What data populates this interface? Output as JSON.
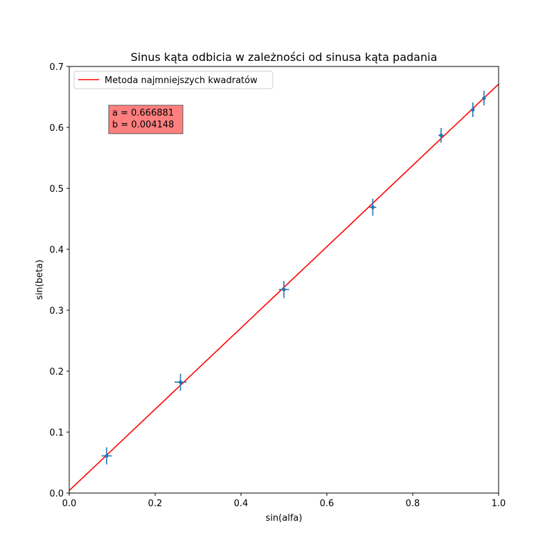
{
  "chart_data": {
    "type": "scatter",
    "title": "Sinus kąta odbicia w zależności od sinusa kąta padania",
    "xlabel": "sin(alfa)",
    "ylabel": "sin(beta)",
    "xlim": [
      0.0,
      1.0
    ],
    "ylim": [
      0.0,
      0.7
    ],
    "xticks": [
      "0.0",
      "0.2",
      "0.4",
      "0.6",
      "0.8",
      "1.0"
    ],
    "yticks": [
      "0.0",
      "0.1",
      "0.2",
      "0.3",
      "0.4",
      "0.5",
      "0.6",
      "0.7"
    ],
    "grid": false,
    "legend_position": "top-left",
    "points": [
      {
        "x": 0.087,
        "y": 0.061,
        "xerr": 0.012,
        "yerr": 0.014
      },
      {
        "x": 0.259,
        "y": 0.182,
        "xerr": 0.014,
        "yerr": 0.014
      },
      {
        "x": 0.5,
        "y": 0.334,
        "xerr": 0.012,
        "yerr": 0.014
      },
      {
        "x": 0.707,
        "y": 0.469,
        "xerr": 0.008,
        "yerr": 0.014
      },
      {
        "x": 0.866,
        "y": 0.587,
        "xerr": 0.006,
        "yerr": 0.012
      },
      {
        "x": 0.94,
        "y": 0.629,
        "xerr": 0.004,
        "yerr": 0.012
      },
      {
        "x": 0.966,
        "y": 0.648,
        "xerr": 0.003,
        "yerr": 0.012
      }
    ],
    "fit_line": {
      "name": "Metoda najmniejszych kwadratów",
      "a": 0.666881,
      "b": 0.004148,
      "color": "#ff0000"
    },
    "annotation": {
      "line1": "a = 0.666881",
      "line2": "b = 0.004148",
      "background": "#ff7f7f",
      "x": 0.1,
      "y": 0.6
    },
    "point_color": "#1f77b4"
  }
}
